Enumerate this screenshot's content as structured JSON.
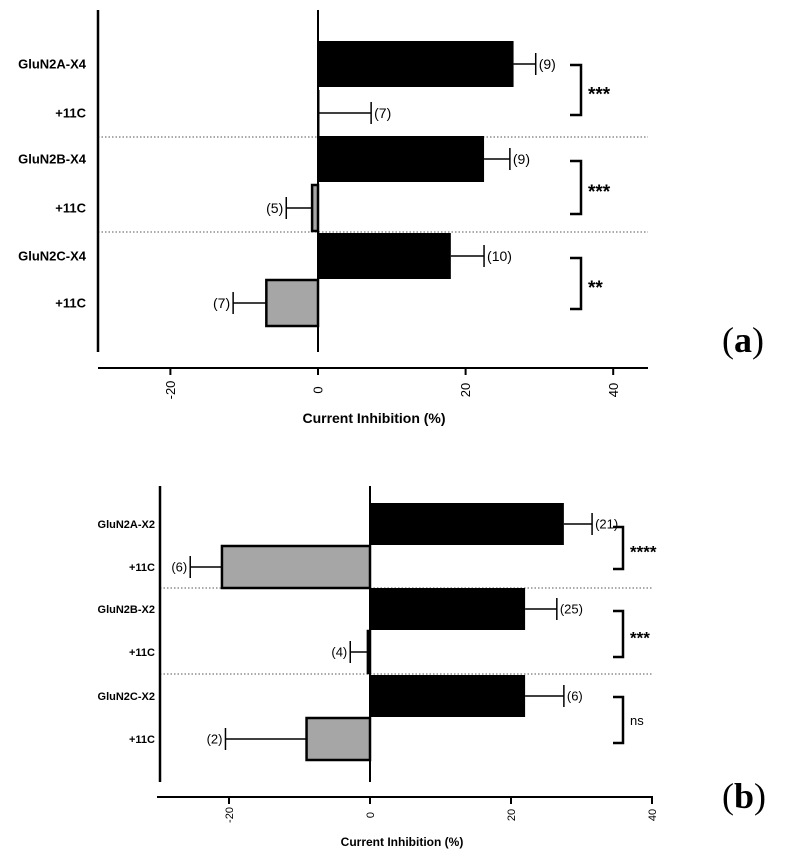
{
  "chart_data": [
    {
      "type": "bar",
      "orientation": "horizontal",
      "panel_label": "a",
      "xlabel": "Current Inhibition (%)",
      "xlim": [
        -30,
        45
      ],
      "xticks": [
        -20,
        0,
        20,
        40
      ],
      "categories": [
        "GluN2A-X4",
        "+11C",
        "GluN2B-X4",
        "+11C",
        "GluN2C-X4",
        "+11C"
      ],
      "values": [
        26.5,
        0.2,
        22.5,
        -0.8,
        18,
        -7
      ],
      "errors": [
        3,
        7,
        3.5,
        3.5,
        4.5,
        4.5
      ],
      "n_labels": [
        "(9)",
        "(7)",
        "(9)",
        "(5)",
        "(10)",
        "(7)"
      ],
      "bar_colors": [
        "#000000",
        "#000000",
        "#000000",
        "#a6a6a6",
        "#000000",
        "#a6a6a6"
      ],
      "significance": [
        "***",
        "***",
        "**"
      ]
    },
    {
      "type": "bar",
      "orientation": "horizontal",
      "panel_label": "b",
      "xlabel": "Current Inhibition (%)",
      "xlim": [
        -30,
        40
      ],
      "xticks": [
        -20,
        0,
        20,
        40
      ],
      "categories": [
        "GluN2A-X2",
        "+11C",
        "GluN2B-X2",
        "+11C",
        "GluN2C-X2",
        "+11C"
      ],
      "values": [
        27.5,
        -21,
        22,
        -0.3,
        22,
        -9
      ],
      "errors": [
        4,
        4.5,
        4.5,
        2.5,
        5.5,
        11.5
      ],
      "n_labels": [
        "(21)",
        "(6)",
        "(25)",
        "(4)",
        "(6)",
        "(2)"
      ],
      "bar_colors": [
        "#000000",
        "#a6a6a6",
        "#000000",
        "#a6a6a6",
        "#000000",
        "#a6a6a6"
      ],
      "significance": [
        "****",
        "***",
        "ns"
      ]
    }
  ]
}
